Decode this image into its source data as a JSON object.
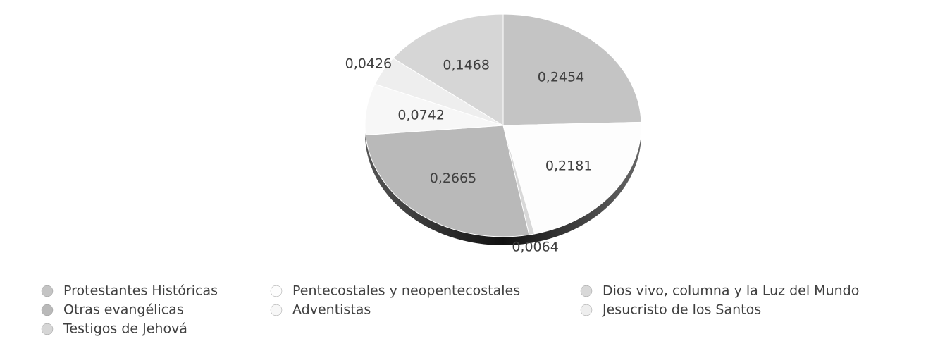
{
  "chart_data": {
    "type": "pie",
    "categories": [
      "Protestantes Históricas",
      "Pentecostales y neopentecostales",
      "Dios vivo, columna y la Luz del Mundo",
      "Otras evangélicas",
      "Adventistas",
      "Jesucristo de los Santos",
      "Testigos de Jehová"
    ],
    "values": [
      0.2454,
      0.2181,
      0.0064,
      0.2665,
      0.0742,
      0.0426,
      0.1468
    ],
    "value_labels": [
      "0,2454",
      "0,2181",
      "0,0064",
      "0,2665",
      "0,0742",
      "0,0426",
      "0,1468"
    ],
    "colors": [
      "#c4c4c4",
      "#fdfdfd",
      "#d8d8d8",
      "#b9b9b9",
      "#f7f7f7",
      "#eeeeee",
      "#d6d6d6"
    ]
  }
}
